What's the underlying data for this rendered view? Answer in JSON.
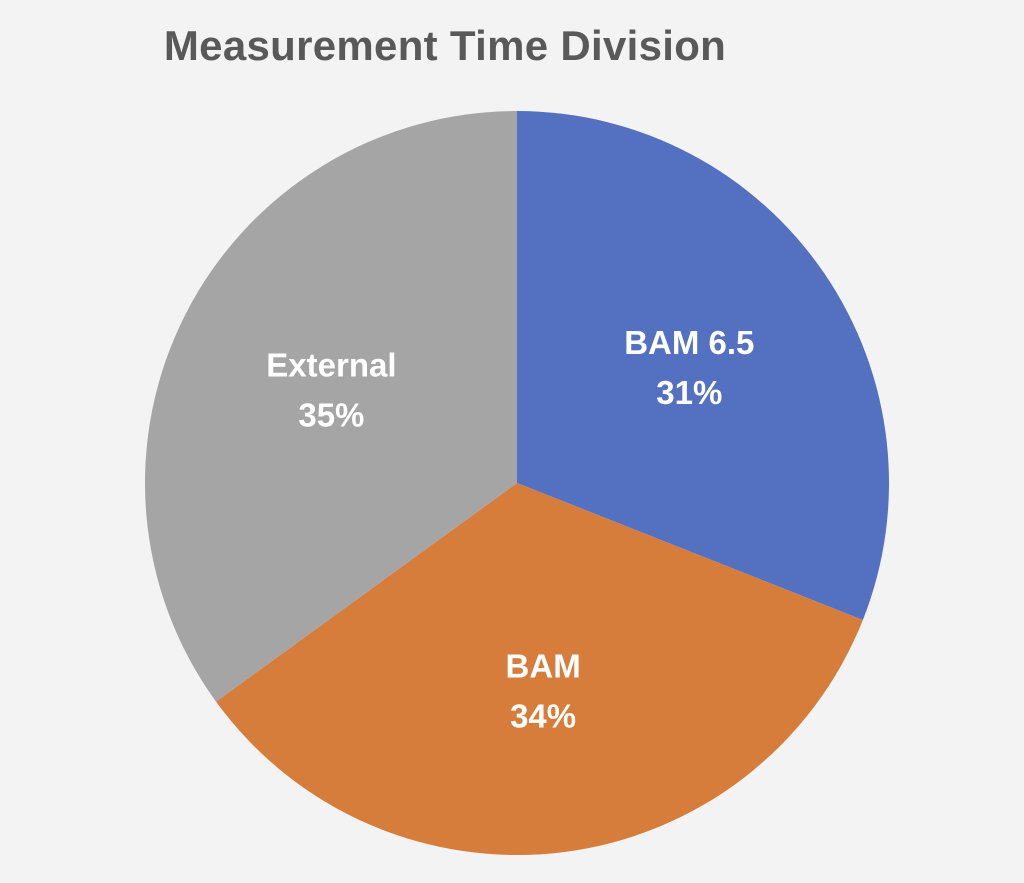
{
  "chart_data": {
    "type": "pie",
    "title": "Measurement Time Division",
    "slices": [
      {
        "label": "BAM 6.5",
        "value": 31,
        "value_label": "31%",
        "color": "#5470c0"
      },
      {
        "label": "BAM",
        "value": 34,
        "value_label": "34%",
        "color": "#d67d3b"
      },
      {
        "label": "External",
        "value": 35,
        "value_label": "35%",
        "color": "#a5a5a5"
      }
    ],
    "start": "12 o'clock",
    "direction": "clockwise",
    "legend": "none",
    "data_labels": "inside"
  }
}
